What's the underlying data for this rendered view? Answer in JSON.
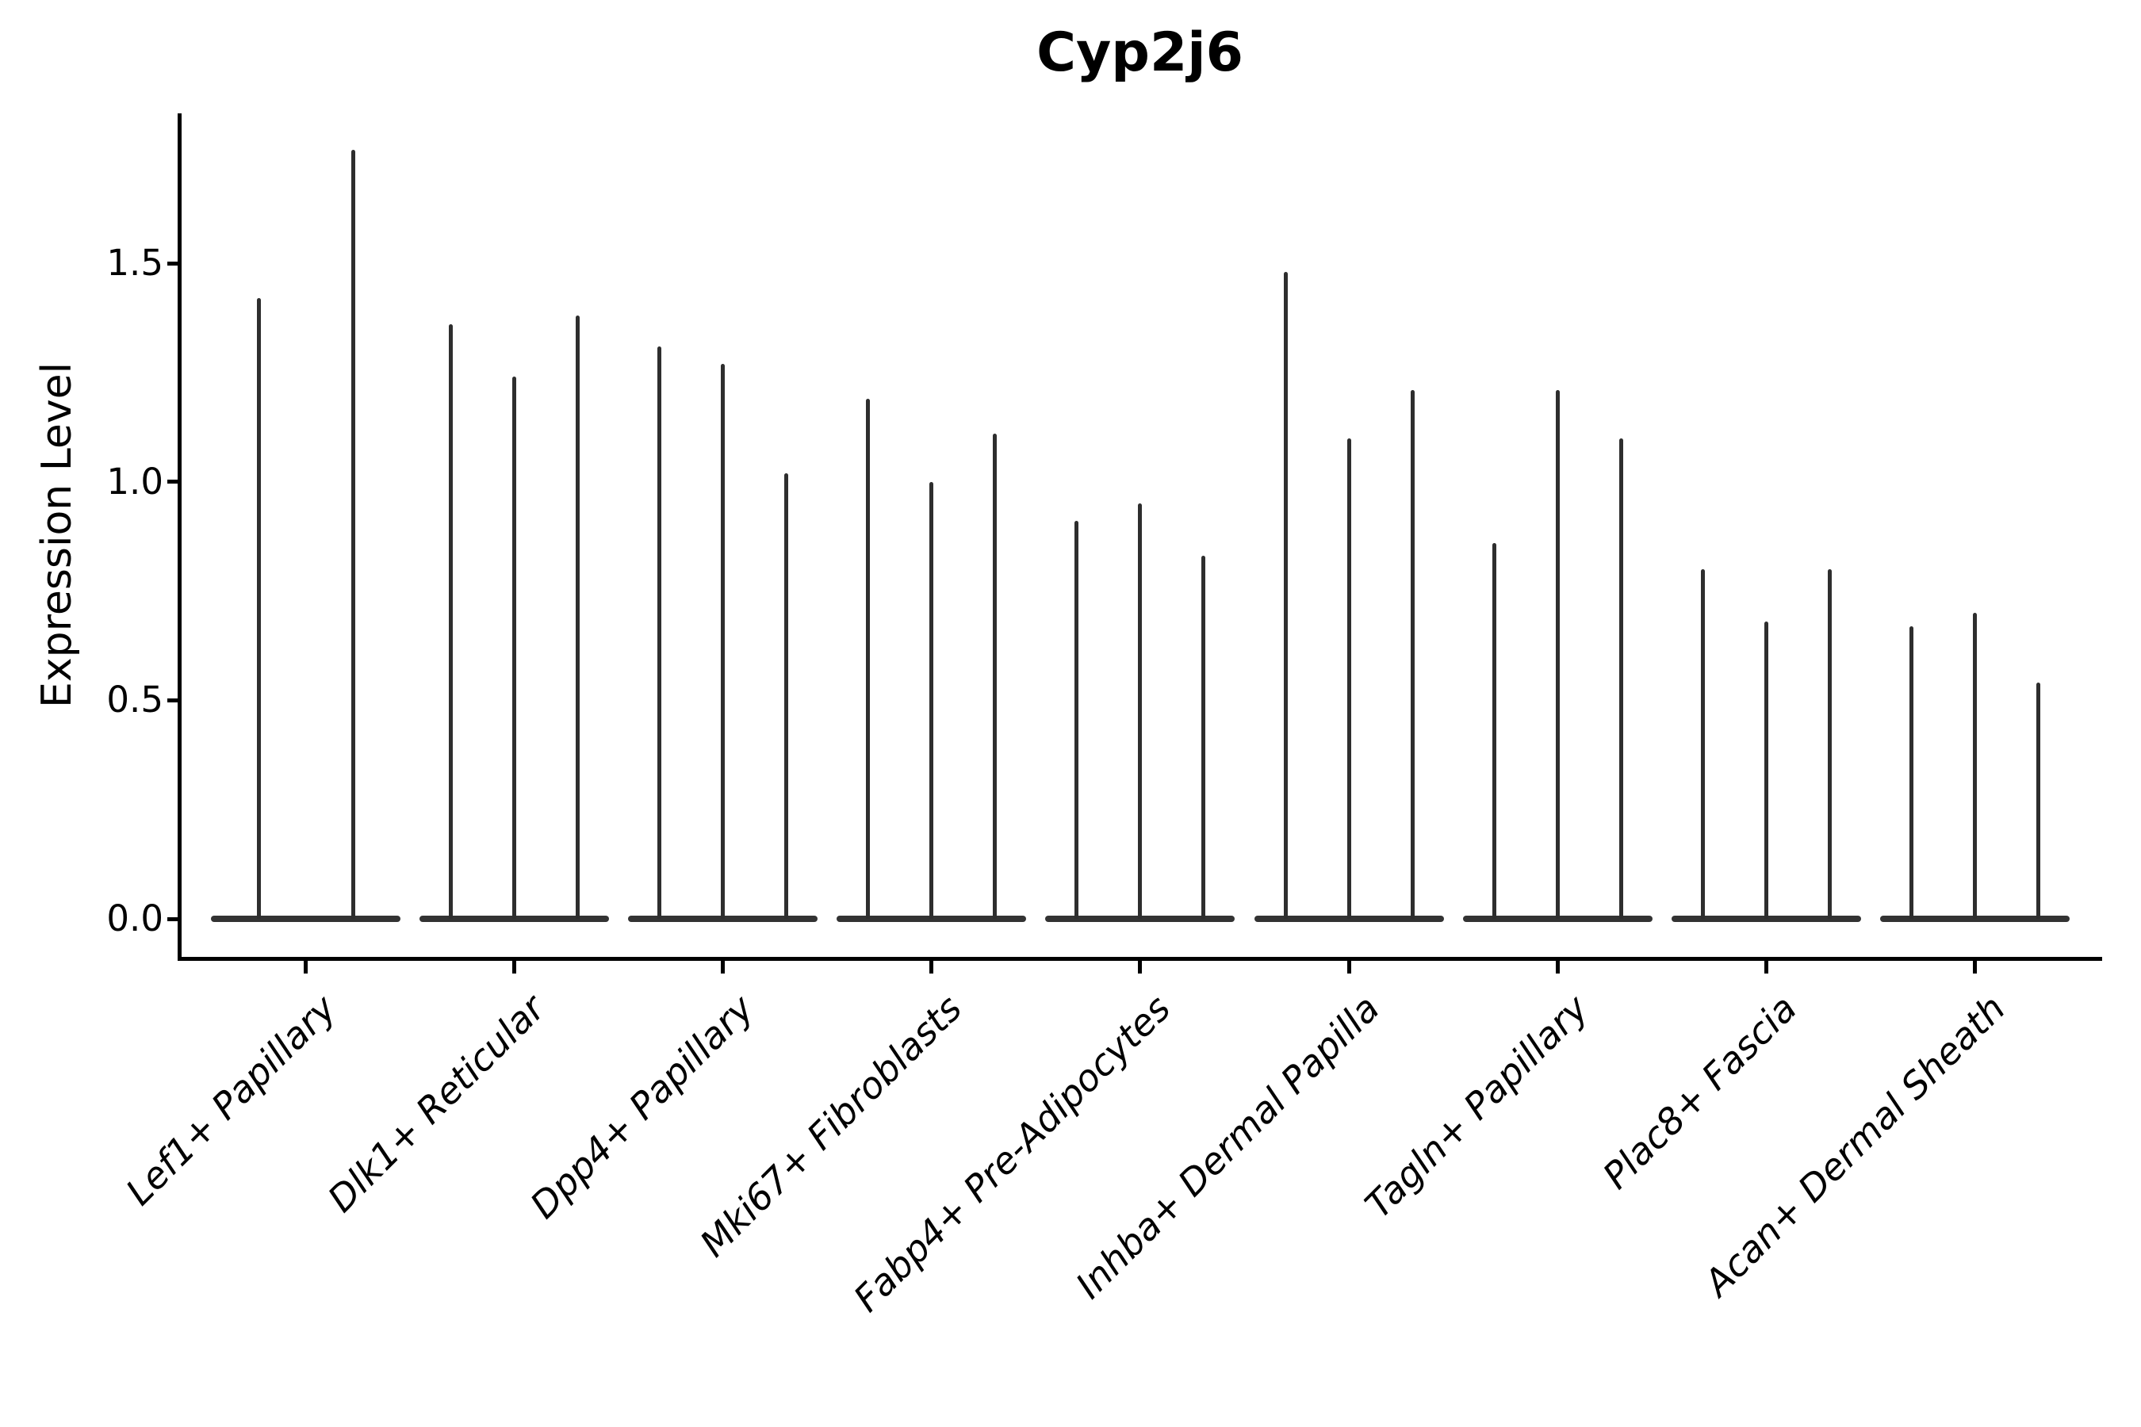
{
  "colors": {
    "background": "#ffffff",
    "violin_spike": "#2e2e2e",
    "violin_base": "#333333",
    "axis": "#000000",
    "text": "#000000"
  },
  "chart_data": {
    "type": "violin",
    "title": "Cyp2j6",
    "xlabel": "",
    "ylabel": "Expression Level",
    "yticks": [
      0.0,
      0.5,
      1.0,
      1.5
    ],
    "ylim": [
      -0.09,
      1.85
    ],
    "grid": false,
    "legend": false,
    "description": "Violin plot of Cyp2j6 expression level per fibroblast cell-type cluster; each cluster shows 2-3 extremely narrow violins (spikes) whose density bulk sits flat at 0, with thin spikes rising to the maximum expression value.",
    "categories": [
      "Lef1+ Papillary",
      "Dlk1+ Reticular",
      "Dpp4+ Papillary",
      "Mki67+ Fibroblasts",
      "Fabp4+ Pre-Adipocytes",
      "Inhba+ Dermal Papilla",
      "Tagln+ Papillary",
      "Plac8+ Fascia",
      "Acan+ Dermal Sheath"
    ],
    "groups": [
      {
        "category": "Lef1+ Papillary",
        "violin_peaks": [
          1.42,
          1.76
        ]
      },
      {
        "category": "Dlk1+ Reticular",
        "violin_peaks": [
          1.36,
          1.24,
          1.38
        ]
      },
      {
        "category": "Dpp4+ Papillary",
        "violin_peaks": [
          1.31,
          1.27,
          1.02
        ]
      },
      {
        "category": "Mki67+ Fibroblasts",
        "violin_peaks": [
          1.19,
          1.0,
          1.11
        ]
      },
      {
        "category": "Fabp4+ Pre-Adipocytes",
        "violin_peaks": [
          0.91,
          0.95,
          0.83
        ]
      },
      {
        "category": "Inhba+ Dermal Papilla",
        "violin_peaks": [
          1.48,
          1.1,
          1.21
        ]
      },
      {
        "category": "Tagln+ Papillary",
        "violin_peaks": [
          0.86,
          1.21,
          1.1
        ]
      },
      {
        "category": "Plac8+ Fascia",
        "violin_peaks": [
          0.8,
          0.68,
          0.8
        ]
      },
      {
        "category": "Acan+ Dermal Sheath",
        "violin_peaks": [
          0.67,
          0.7,
          0.54
        ]
      }
    ]
  }
}
